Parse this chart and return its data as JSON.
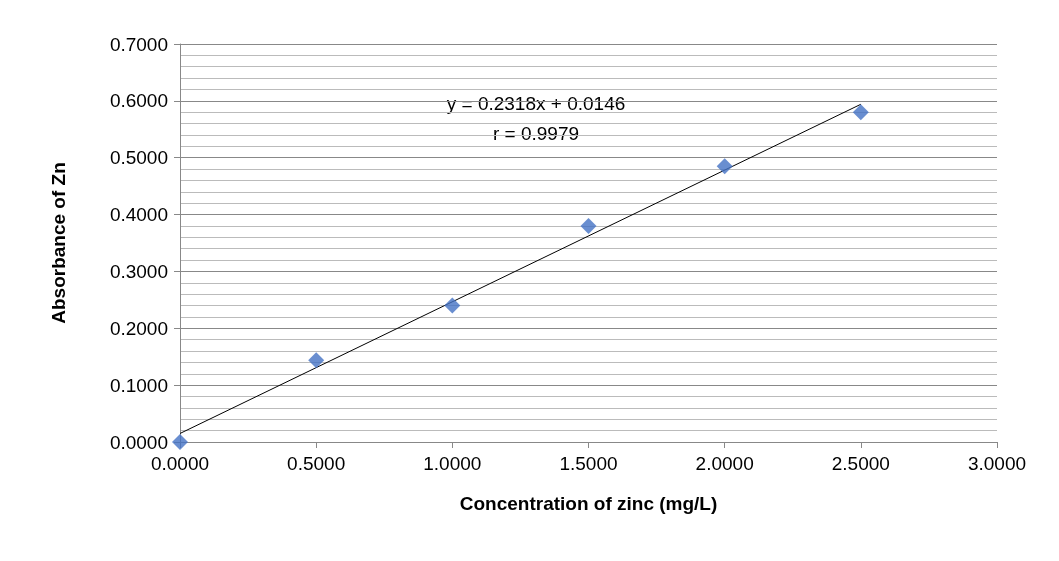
{
  "chart_data": {
    "type": "scatter",
    "xlabel": "Concentration of zinc (mg/L)",
    "ylabel": "Absorbance of Zn",
    "x": [
      0,
      0.5,
      1,
      1.5,
      2,
      2.5
    ],
    "series": [
      {
        "color": "#4472c4",
        "marker": "diamond",
        "values": [
          0,
          0.144,
          0.24,
          0.38,
          0.485,
          0.58
        ]
      },
      {
        "type": "line",
        "color": "#000000",
        "marker": "none",
        "x": [
          0,
          2.5
        ],
        "values": [
          0.015,
          0.594
        ]
      }
    ],
    "annotations": [
      "y = 0.2318x + 0.0146",
      "r = 0.9979"
    ],
    "xlim": [
      0,
      3
    ],
    "xticks": [
      {
        "value": 0,
        "label": "0.0000"
      },
      {
        "value": 0.5,
        "label": "0.5000"
      },
      {
        "value": 1,
        "label": "1.0000"
      },
      {
        "value": 1.5,
        "label": "1.5000"
      },
      {
        "value": 2,
        "label": "2.0000"
      },
      {
        "value": 2.5,
        "label": "2.5000"
      },
      {
        "value": 3,
        "label": "3.0000"
      }
    ],
    "ylim": [
      0,
      0.7
    ],
    "yticks": [
      {
        "value": 0,
        "label": "0.0000"
      },
      {
        "value": 0.1,
        "label": "0.1000"
      },
      {
        "value": 0.2,
        "label": "0.2000"
      },
      {
        "value": 0.3,
        "label": "0.3000"
      },
      {
        "value": 0.4,
        "label": "0.4000"
      },
      {
        "value": 0.5,
        "label": "0.5000"
      },
      {
        "value": 0.6,
        "label": "0.6000"
      },
      {
        "value": 0.7,
        "label": "0.7000"
      }
    ],
    "grid": "y"
  }
}
